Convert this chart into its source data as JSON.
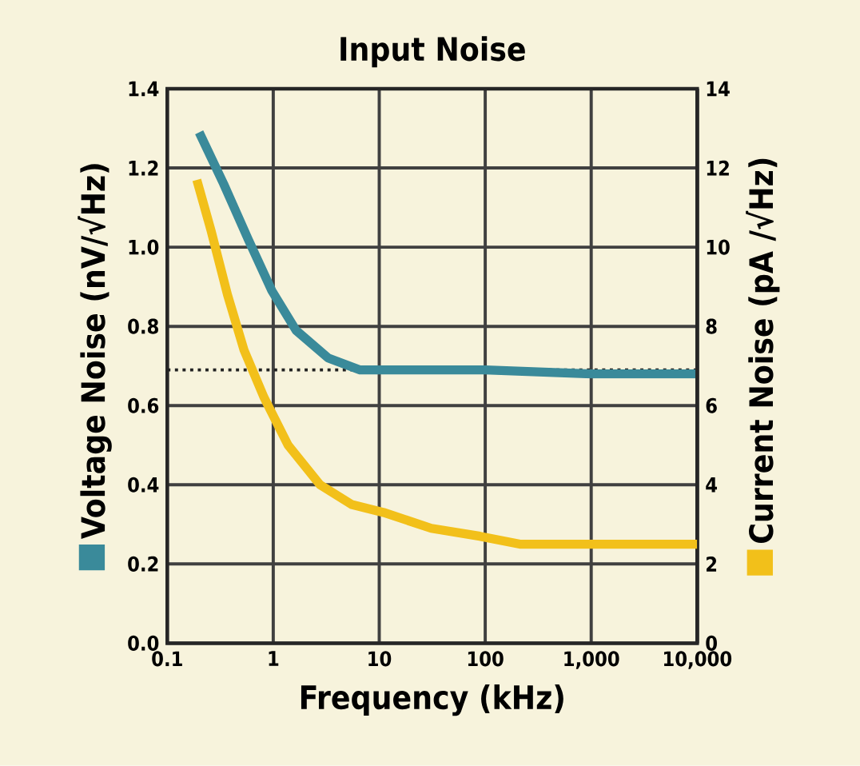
{
  "chart_data": {
    "type": "line",
    "title": "Input Noise",
    "xlabel": "Frequency (kHz)",
    "ylabel": "Voltage Noise (nV/√Hz)",
    "y2label": "Current Noise (pA /√Hz)",
    "log": "x",
    "grid": true,
    "marker": "none",
    "line_style": "solid",
    "xlim": [
      0.1,
      10000
    ],
    "xticks": [
      0.1,
      1,
      10,
      100,
      {
        "value": 1000,
        "label": "1,000"
      },
      {
        "value": 10000,
        "label": "10,000"
      }
    ],
    "ylim": [
      0,
      1.4
    ],
    "yticks": [
      {
        "value": 0,
        "label": "0.0"
      },
      0.2,
      0.4,
      0.6,
      0.8,
      {
        "value": 1,
        "label": "1.0"
      },
      1.2,
      1.4
    ],
    "y2lim": [
      0,
      14
    ],
    "y2ticks": [
      0,
      2,
      4,
      6,
      8,
      10,
      12,
      14
    ],
    "ref_lines": [
      {
        "axis": "y",
        "value": 0.69,
        "line_style": "dotted",
        "color": "#222222"
      }
    ],
    "series": [
      {
        "color": "#3a8a9a",
        "x": [
          0.2,
          0.34,
          0.58,
          0.97,
          1.64,
          3.3,
          6.6,
          11,
          100,
          1000,
          10000
        ],
        "values": [
          1.29,
          1.16,
          1.02,
          0.89,
          0.79,
          0.72,
          0.69,
          0.69,
          0.69,
          0.68,
          0.68
        ]
      },
      {
        "color": "#f2c01a",
        "axis": "y2",
        "x": [
          0.19,
          0.26,
          0.37,
          0.53,
          0.82,
          1.38,
          2.76,
          5.5,
          11,
          31,
          89,
          212,
          1000,
          10000
        ],
        "values": [
          11.7,
          10.4,
          8.8,
          7.4,
          6.2,
          5.0,
          4.0,
          3.5,
          3.3,
          2.9,
          2.7,
          2.5,
          2.5,
          2.5
        ]
      }
    ]
  }
}
